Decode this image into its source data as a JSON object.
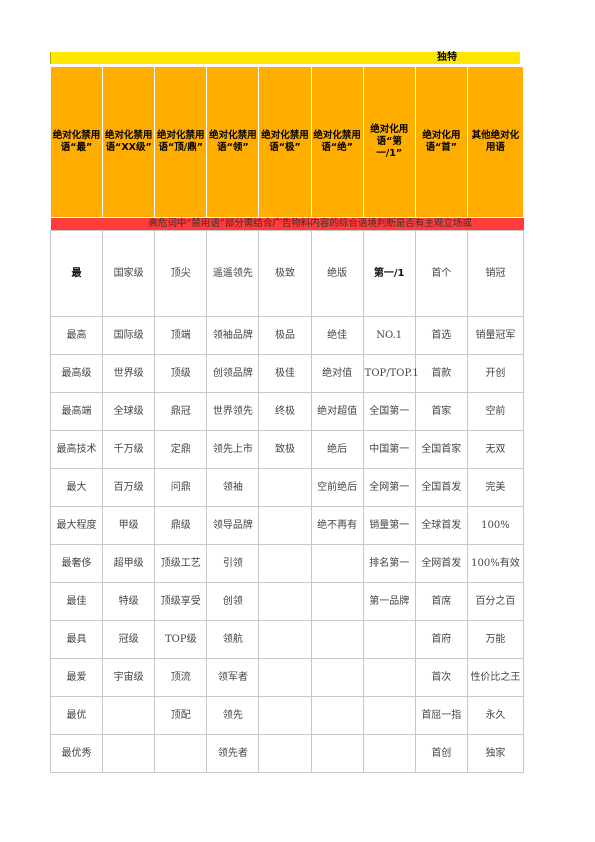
{
  "title_label": "独特",
  "headers": [
    "绝对化禁用语“最”",
    "绝对化禁用语“XX级”",
    "绝对化禁用语“顶/鼎”",
    "绝对化禁用语“领”",
    "绝对化禁用语“极”",
    "绝对化禁用语“绝”",
    "绝对化用语“第一/1”",
    "绝对化用语“首”",
    "其他绝对化用语"
  ],
  "warning": "高危词中“禁用语”部分需结合广告物料内容的综合语境判断是否有主观立场或",
  "rows": [
    [
      "最",
      "国家级",
      "顶尖",
      "遥遥领先",
      "极致",
      "绝版",
      "第一/1",
      "首个",
      "销冠"
    ],
    [
      "最高",
      "国际级",
      "顶端",
      "领袖品牌",
      "极品",
      "绝佳",
      "NO.1",
      "首选",
      "销量冠军"
    ],
    [
      "最高级",
      "世界级",
      "顶级",
      "创领品牌",
      "极佳",
      "绝对值",
      "TOP/TOP.1",
      "首款",
      "开创"
    ],
    [
      "最高端",
      "全球级",
      "鼎冠",
      "世界领先",
      "终极",
      "绝对超值",
      "全国第一",
      "首家",
      "空前"
    ],
    [
      "最高技术",
      "千万级",
      "定鼎",
      "领先上市",
      "致极",
      "绝后",
      "中国第一",
      "全国首家",
      "无双"
    ],
    [
      "最大",
      "百万级",
      "问鼎",
      "领袖",
      "",
      "空前绝后",
      "全网第一",
      "全国首发",
      "完美"
    ],
    [
      "最大程度",
      "甲级",
      "鼎级",
      "领导品牌",
      "",
      "绝不再有",
      "销量第一",
      "全球首发",
      "100%"
    ],
    [
      "最奢侈",
      "超甲级",
      "顶级工艺",
      "引领",
      "",
      "",
      "排名第一",
      "全网首发",
      "100%有效"
    ],
    [
      "最佳",
      "特级",
      "顶级享受",
      "创领",
      "",
      "",
      "第一品牌",
      "首席",
      "百分之百"
    ],
    [
      "最具",
      "冠级",
      "TOP级",
      "领航",
      "",
      "",
      "",
      "首府",
      "万能"
    ],
    [
      "最爱",
      "宇宙级",
      "顶流",
      "领军者",
      "",
      "",
      "",
      "首次",
      "性价比之王"
    ],
    [
      "最优",
      "",
      "顶配",
      "领先",
      "",
      "",
      "",
      "首屈一指",
      "永久"
    ],
    [
      "最优秀",
      "",
      "",
      "领先者",
      "",
      "",
      "",
      "首创",
      "独家"
    ]
  ]
}
